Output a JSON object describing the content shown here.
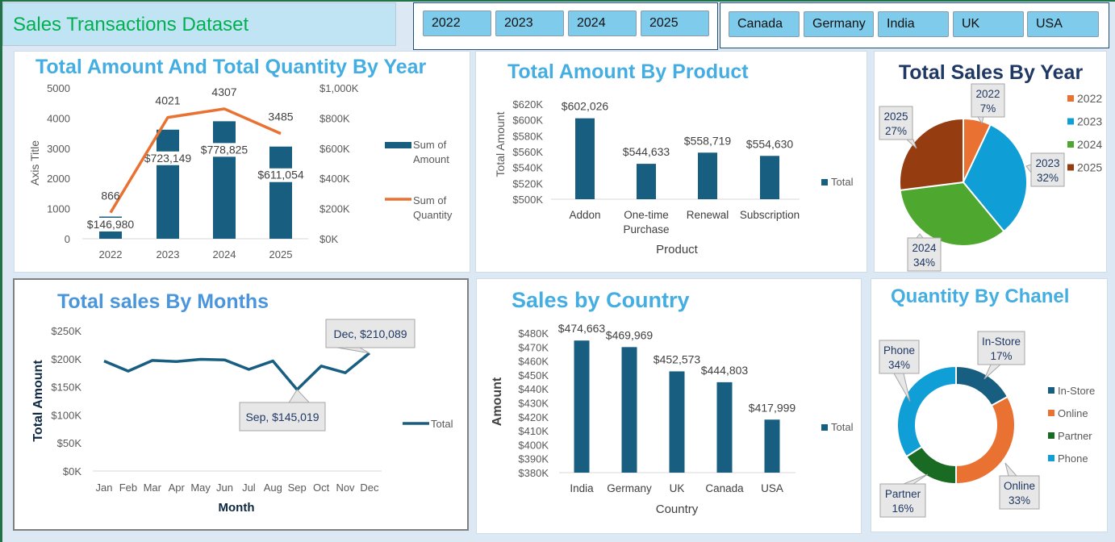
{
  "header": {
    "title": "Sales Transactions Dataset"
  },
  "year_slicer": {
    "items": [
      "2022",
      "2023",
      "2024",
      "2025"
    ]
  },
  "country_slicer": {
    "items": [
      "Canada",
      "Germany",
      "India",
      "UK",
      "USA"
    ]
  },
  "colors": {
    "bar": "#175e80",
    "line": "#e97132",
    "title_blue": "#44aee3",
    "title_navy": "#1f3864",
    "pie": [
      "#e97132",
      "#0f9ed5",
      "#4ea72e",
      "#953d11"
    ],
    "donut": [
      "#175e80",
      "#e97132",
      "#196b24",
      "#0f9ed5"
    ]
  },
  "chart_data": [
    {
      "type": "bar+line",
      "title": "Total Amount And Total Quantity By Year",
      "ylabel": "Axis Title",
      "categories": [
        "2022",
        "2023",
        "2024",
        "2025"
      ],
      "ylim_left": [
        0,
        5000
      ],
      "yticks_left": [
        "0",
        "1000",
        "2000",
        "3000",
        "4000",
        "5000"
      ],
      "ylim_right": [
        0,
        1000000
      ],
      "yticks_right": [
        "$0K",
        "$200K",
        "$400K",
        "$600K",
        "$800K",
        "$1,000K"
      ],
      "series": [
        {
          "name": "Sum of Amount",
          "legend": [
            "Sum of",
            "Amount"
          ],
          "type": "bar",
          "axis": "right",
          "values": [
            146980,
            723149,
            778825,
            611054
          ],
          "labels": [
            "$146,980",
            "$723,149",
            "$778,825",
            "$611,054"
          ]
        },
        {
          "name": "Sum of Quantity",
          "legend": [
            "Sum of",
            "Quantity"
          ],
          "type": "line",
          "axis": "left",
          "values": [
            866,
            4021,
            4307,
            3485
          ],
          "labels": [
            "866",
            "4021",
            "4307",
            "3485"
          ]
        }
      ],
      "legend": "right"
    },
    {
      "type": "bar",
      "title": "Total Amount  By Product",
      "xlabel": "Product",
      "ylabel": "Total Amount",
      "categories": [
        [
          "Addon"
        ],
        [
          "One-time",
          "Purchase"
        ],
        [
          "Renewal"
        ],
        [
          "Subscription"
        ]
      ],
      "values": [
        602026,
        544633,
        558719,
        554630
      ],
      "labels": [
        "$602,026",
        "$544,633",
        "$558,719",
        "$554,630"
      ],
      "ylim": [
        500000,
        620000
      ],
      "yticks": [
        "$500K",
        "$520K",
        "$540K",
        "$560K",
        "$580K",
        "$600K",
        "$620K"
      ],
      "series_name": "Total",
      "legend": "right"
    },
    {
      "type": "pie",
      "title": "Total Sales By Year",
      "categories": [
        "2022",
        "2023",
        "2024",
        "2025"
      ],
      "values": [
        7,
        32,
        34,
        27
      ],
      "labels": [
        "7%",
        "32%",
        "34%",
        "27%"
      ],
      "legend": "right"
    },
    {
      "type": "line",
      "title": "Total sales By Months",
      "xlabel": "Month",
      "ylabel": "Total Amount",
      "categories": [
        "Jan",
        "Feb",
        "Mar",
        "Apr",
        "May",
        "Jun",
        "Jul",
        "Aug",
        "Sep",
        "Oct",
        "Nov",
        "Dec"
      ],
      "values": [
        196000,
        178000,
        197000,
        195000,
        199000,
        198000,
        181000,
        196000,
        145019,
        187000,
        175000,
        210089
      ],
      "ylim": [
        0,
        250000
      ],
      "yticks": [
        "$0K",
        "$50K",
        "$100K",
        "$150K",
        "$200K",
        "$250K"
      ],
      "annotations": [
        {
          "index": 11,
          "text": "Dec, $210,089"
        },
        {
          "index": 8,
          "text": "Sep, $145,019"
        }
      ],
      "series_name": "Total",
      "legend": "right"
    },
    {
      "type": "bar",
      "title": "Sales by Country",
      "xlabel": "Country",
      "ylabel": "Amount",
      "categories": [
        "India",
        "Germany",
        "UK",
        "Canada",
        "USA"
      ],
      "values": [
        474663,
        469969,
        452573,
        444803,
        417999
      ],
      "labels": [
        "$474,663",
        "$469,969",
        "$452,573",
        "$444,803",
        "$417,999"
      ],
      "ylim": [
        380000,
        480000
      ],
      "yticks": [
        "$380K",
        "$390K",
        "$400K",
        "$410K",
        "$420K",
        "$430K",
        "$440K",
        "$450K",
        "$460K",
        "$470K",
        "$480K"
      ],
      "series_name": "Total",
      "legend": "right"
    },
    {
      "type": "donut",
      "title": "Quantity By Chanel",
      "categories": [
        "In-Store",
        "Online",
        "Partner",
        "Phone"
      ],
      "values": [
        17,
        33,
        16,
        34
      ],
      "labels": [
        "17%",
        "33%",
        "16%",
        "34%"
      ],
      "legend": "right"
    }
  ]
}
